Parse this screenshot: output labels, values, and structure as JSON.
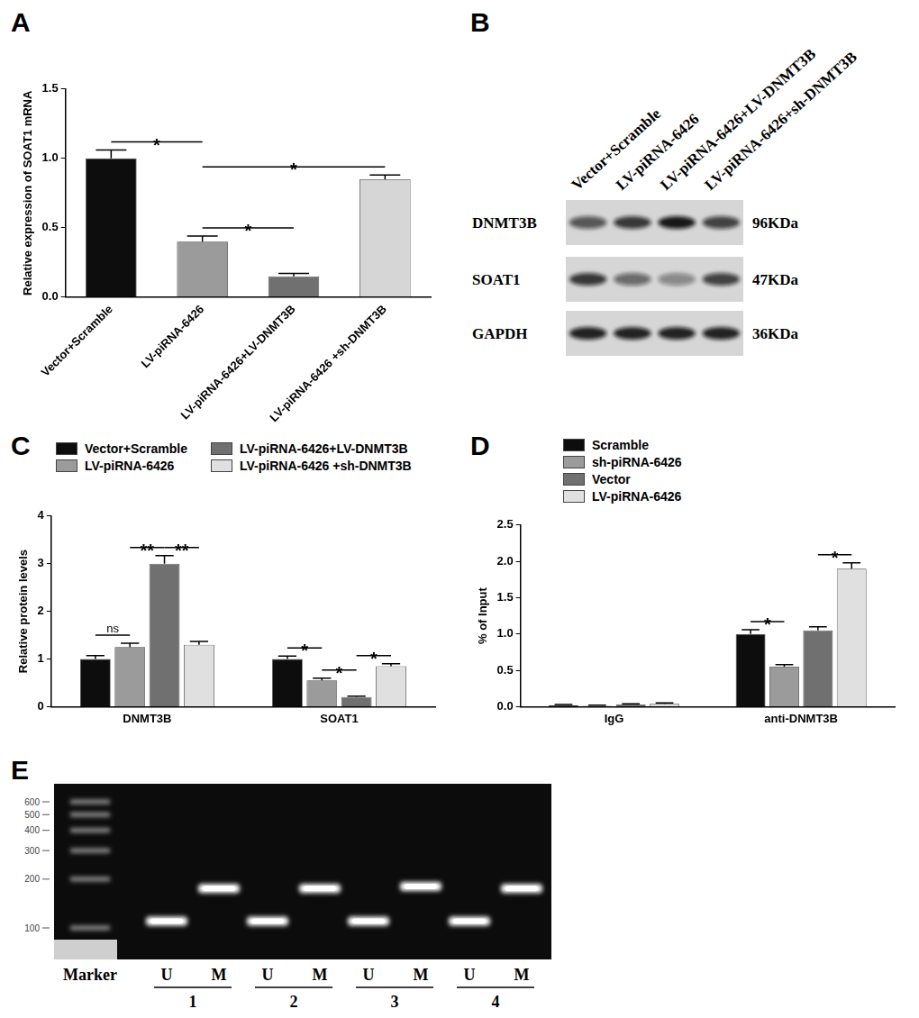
{
  "panel_labels": [
    "A",
    "B",
    "C",
    "D",
    "E"
  ],
  "chart_data": [
    {
      "type": "bar",
      "y_label": "Relative expression of SOAT1 mRNA",
      "categories": [
        "Vector+Scramble",
        "LV-piRNA-6426",
        "LV-piRNA-6426+LV-DNMT3B",
        "LV-piRNA-6426 +sh-DNMT3B"
      ],
      "values": [
        1.0,
        0.4,
        0.15,
        0.85
      ],
      "errors": [
        0.06,
        0.04,
        0.02,
        0.03
      ],
      "colors": [
        "#0d0d0d",
        "#9b9b9b",
        "#707070",
        "#d6d6d6"
      ],
      "ylim": [
        0,
        1.5
      ],
      "yticks": [
        {
          "value": 0,
          "label": "0.0"
        },
        {
          "value": 0.5,
          "label": "0.5"
        },
        {
          "value": 1,
          "label": "1.0"
        },
        {
          "value": 1.5,
          "label": "1.5"
        }
      ],
      "grid": false,
      "annotations": [
        {
          "between": [
            "Vector+Scramble",
            "LV-piRNA-6426"
          ],
          "text": "*"
        },
        {
          "between": [
            "LV-piRNA-6426",
            "LV-piRNA-6426+LV-DNMT3B"
          ],
          "text": "*"
        },
        {
          "between": [
            "LV-piRNA-6426",
            "LV-piRNA-6426 +sh-DNMT3B"
          ],
          "text": "*"
        }
      ]
    },
    {
      "type": "bar",
      "y_label": "Relative protein levels",
      "categories": [
        "DNMT3B",
        "SOAT1"
      ],
      "series": [
        {
          "name": "Vector+Scramble",
          "color": "#0d0d0d",
          "values": [
            1.0,
            1.0
          ],
          "errors": [
            0.07,
            0.06
          ]
        },
        {
          "name": "LV-piRNA-6426",
          "color": "#9b9b9b",
          "values": [
            1.25,
            0.55
          ],
          "errors": [
            0.08,
            0.05
          ]
        },
        {
          "name": "LV-piRNA-6426+LV-DNMT3B",
          "color": "#707070",
          "values": [
            3.0,
            0.2
          ],
          "errors": [
            0.17,
            0.02
          ]
        },
        {
          "name": "LV-piRNA-6426 +sh-DNMT3B",
          "color": "#e0e0e0",
          "values": [
            1.3,
            0.85
          ],
          "errors": [
            0.07,
            0.05
          ]
        }
      ],
      "ylim": [
        0,
        4
      ],
      "yticks": [
        0,
        1,
        2,
        3,
        4
      ],
      "grid": false,
      "legend": "top",
      "annotations": [
        {
          "category": "DNMT3B",
          "between": [
            "Vector+Scramble",
            "LV-piRNA-6426"
          ],
          "text": "ns"
        },
        {
          "category": "DNMT3B",
          "between": [
            "LV-piRNA-6426",
            "LV-piRNA-6426+LV-DNMT3B"
          ],
          "text": "**"
        },
        {
          "category": "DNMT3B",
          "between": [
            "LV-piRNA-6426+LV-DNMT3B",
            "LV-piRNA-6426 +sh-DNMT3B"
          ],
          "text": "**"
        },
        {
          "category": "SOAT1",
          "between": [
            "Vector+Scramble",
            "LV-piRNA-6426"
          ],
          "text": "*"
        },
        {
          "category": "SOAT1",
          "between": [
            "LV-piRNA-6426",
            "LV-piRNA-6426+LV-DNMT3B"
          ],
          "text": "*"
        },
        {
          "category": "SOAT1",
          "between": [
            "LV-piRNA-6426+LV-DNMT3B",
            "LV-piRNA-6426 +sh-DNMT3B"
          ],
          "text": "*"
        }
      ]
    },
    {
      "type": "bar",
      "y_label": "% of Input",
      "categories": [
        "IgG",
        "anti-DNMT3B"
      ],
      "series": [
        {
          "name": "Scramble",
          "color": "#0d0d0d",
          "values": [
            0.02,
            1.0
          ],
          "errors": [
            0.01,
            0.06
          ]
        },
        {
          "name": "sh-piRNA-6426",
          "color": "#9b9b9b",
          "values": [
            0.01,
            0.55
          ],
          "errors": [
            0.01,
            0.03
          ]
        },
        {
          "name": "Vector",
          "color": "#707070",
          "values": [
            0.03,
            1.05
          ],
          "errors": [
            0.01,
            0.05
          ]
        },
        {
          "name": "LV-piRNA-6426",
          "color": "#e0e0e0",
          "values": [
            0.04,
            1.9
          ],
          "errors": [
            0.01,
            0.08
          ]
        }
      ],
      "ylim": [
        0,
        2.5
      ],
      "yticks": [
        {
          "value": 0,
          "label": "0.0"
        },
        {
          "value": 0.5,
          "label": "0.5"
        },
        {
          "value": 1,
          "label": "1.0"
        },
        {
          "value": 1.5,
          "label": "1.5"
        },
        {
          "value": 2,
          "label": "2.0"
        },
        {
          "value": 2.5,
          "label": "2.5"
        }
      ],
      "grid": false,
      "legend": "top-left",
      "annotations": [
        {
          "category": "anti-DNMT3B",
          "between": [
            "Scramble",
            "sh-piRNA-6426"
          ],
          "text": "*"
        },
        {
          "category": "anti-DNMT3B",
          "between": [
            "Vector",
            "LV-piRNA-6426"
          ],
          "text": "*"
        }
      ]
    }
  ],
  "blot": {
    "lanes": [
      "Vector+Scramble",
      "LV-piRNA-6426",
      "LV-piRNA-6426+LV-DNMT3B",
      "LV-piRNA-6426+sh-DNMT3B"
    ],
    "rows": [
      {
        "name": "DNMT3B",
        "size": "96KDa",
        "band_intensity": [
          0.65,
          0.8,
          0.95,
          0.75
        ]
      },
      {
        "name": "SOAT1",
        "size": "47KDa",
        "band_intensity": [
          0.8,
          0.55,
          0.4,
          0.75
        ]
      },
      {
        "name": "GAPDH",
        "size": "36KDa",
        "band_intensity": [
          0.9,
          0.9,
          0.9,
          0.9
        ]
      }
    ]
  },
  "gel": {
    "ladder_label": "Marker",
    "ladder": [
      600,
      500,
      400,
      300,
      200,
      100
    ],
    "lanes": [
      {
        "label": "U",
        "group": "1",
        "band": 110
      },
      {
        "label": "M",
        "group": "1",
        "band": 175
      },
      {
        "label": "U",
        "group": "2",
        "band": 110
      },
      {
        "label": "M",
        "group": "2",
        "band": 175
      },
      {
        "label": "U",
        "group": "3",
        "band": 110
      },
      {
        "label": "M",
        "group": "3",
        "band": 180
      },
      {
        "label": "U",
        "group": "4",
        "band": 110
      },
      {
        "label": "M",
        "group": "4",
        "band": 175
      }
    ]
  }
}
